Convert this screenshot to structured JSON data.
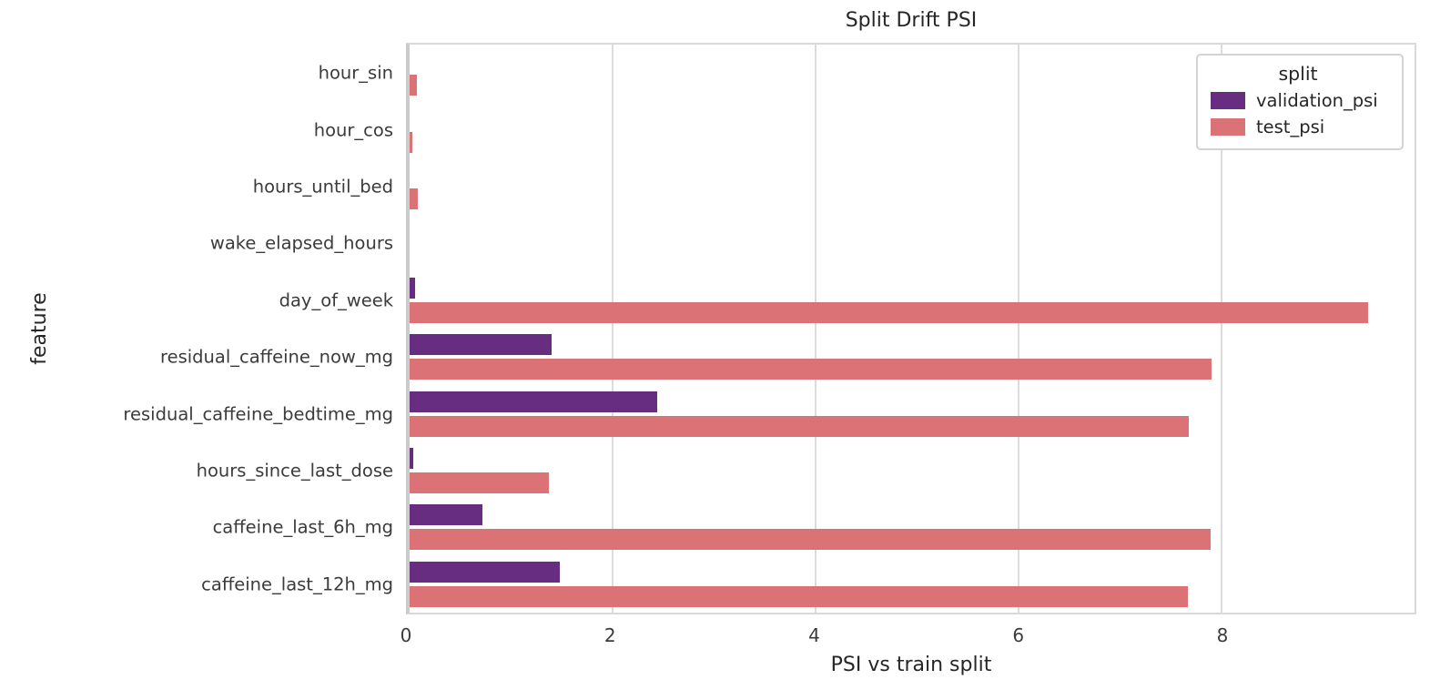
{
  "title": "Split Drift PSI",
  "x_axis": {
    "label": "PSI vs train split",
    "ticks": [
      0,
      2,
      4,
      6,
      8
    ],
    "max": 9.9
  },
  "y_axis": {
    "label": "feature"
  },
  "legend": {
    "title": "split"
  },
  "colors": {
    "validation_psi": "#662d80",
    "test_psi": "#da7276",
    "grid": "#dcdcdc",
    "plot_border": "#d9d9d9"
  },
  "chart_data": {
    "type": "bar",
    "orientation": "horizontal",
    "title": "Split Drift PSI",
    "xlabel": "PSI vs train split",
    "ylabel": "feature",
    "xlim": [
      0,
      9.9
    ],
    "xticks": [
      0,
      2,
      4,
      6,
      8
    ],
    "grid": true,
    "legend_title": "split",
    "legend_position": "upper right",
    "categories": [
      "hour_sin",
      "hour_cos",
      "hours_until_bed",
      "wake_elapsed_hours",
      "day_of_week",
      "residual_caffeine_now_mg",
      "residual_caffeine_bedtime_mg",
      "hours_since_last_dose",
      "caffeine_last_6h_mg",
      "caffeine_last_12h_mg"
    ],
    "series": [
      {
        "name": "validation_psi",
        "color": "#662d80",
        "values": [
          0.0,
          0.0,
          0.0,
          0.0,
          0.05,
          1.4,
          2.44,
          0.04,
          0.72,
          1.48
        ]
      },
      {
        "name": "test_psi",
        "color": "#da7276",
        "values": [
          0.07,
          0.03,
          0.08,
          0.0,
          9.44,
          7.9,
          7.68,
          1.37,
          7.89,
          7.67
        ]
      }
    ]
  }
}
